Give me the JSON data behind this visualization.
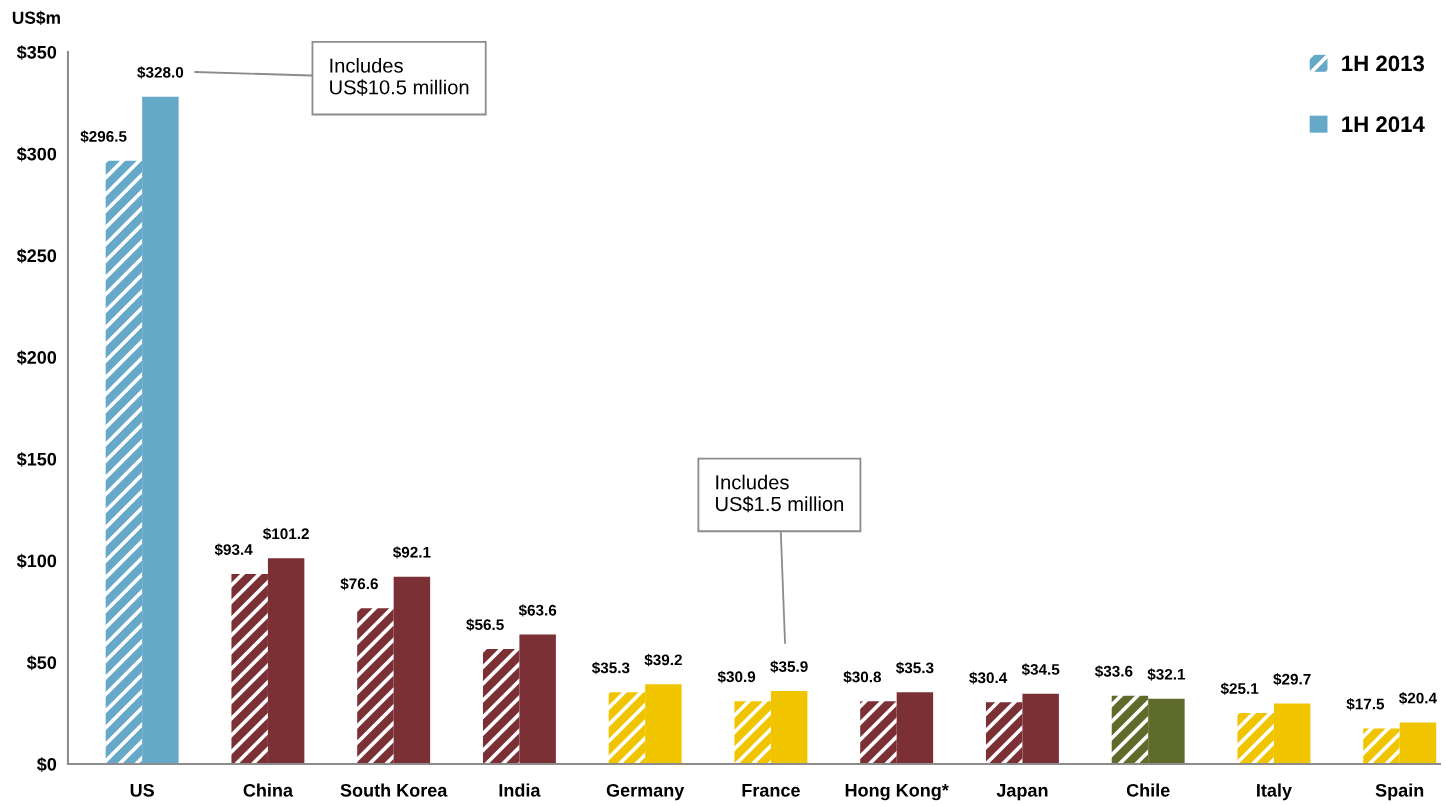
{
  "chart_data": {
    "type": "bar",
    "ylabel": "US$m",
    "categories": [
      "US",
      "China",
      "South Korea",
      "India",
      "Germany",
      "France",
      "Hong Kong*",
      "Japan",
      "Chile",
      "Italy",
      "Spain"
    ],
    "series": [
      {
        "name": "1H 2013",
        "color": "#66a8c8",
        "colors": [
          "#66a8c8",
          "#7b3035",
          "#7b3035",
          "#7b3035",
          "#f0c500",
          "#f0c500",
          "#7b3035",
          "#7b3035",
          "#5f6b2b",
          "#f0c500",
          "#f0c500"
        ],
        "values": [
          296.5,
          93.4,
          76.6,
          56.5,
          35.3,
          30.9,
          30.8,
          30.4,
          33.6,
          25.1,
          17.5
        ],
        "value_labels": [
          "$296.5",
          "$93.4",
          "$76.6",
          "$56.5",
          "$35.3",
          "$30.9",
          "$30.8",
          "$30.4",
          "$33.6",
          "$25.1",
          "$17.5"
        ]
      },
      {
        "name": "1H 2014",
        "color": "#66a8c8",
        "colors": [
          "#66a8c8",
          "#7b3035",
          "#7b3035",
          "#7b3035",
          "#f0c500",
          "#f0c500",
          "#7b3035",
          "#7b3035",
          "#5f6b2b",
          "#f0c500",
          "#f0c500"
        ],
        "values": [
          328.0,
          101.2,
          92.1,
          63.6,
          39.2,
          35.9,
          35.3,
          34.5,
          32.1,
          29.7,
          20.4
        ],
        "value_labels": [
          "$328.0",
          "$101.2",
          "$92.1",
          "$63.6",
          "$39.2",
          "$35.9",
          "$35.3",
          "$34.5",
          "$32.1",
          "$29.7",
          "$20.4"
        ]
      }
    ],
    "ylim": [
      0,
      350
    ],
    "yticks": [
      {
        "value": 0,
        "label": "$0"
      },
      {
        "value": 50,
        "label": "$50"
      },
      {
        "value": 100,
        "label": "$100"
      },
      {
        "value": 150,
        "label": "$150"
      },
      {
        "value": 200,
        "label": "$200"
      },
      {
        "value": 250,
        "label": "$250"
      },
      {
        "value": 300,
        "label": "$300"
      },
      {
        "value": 350,
        "label": "$350"
      }
    ],
    "grid": false,
    "legend": "top right",
    "annotations": [
      "Includes\nUS$10.5 million",
      "Includes\nUS$1.5 million"
    ]
  }
}
